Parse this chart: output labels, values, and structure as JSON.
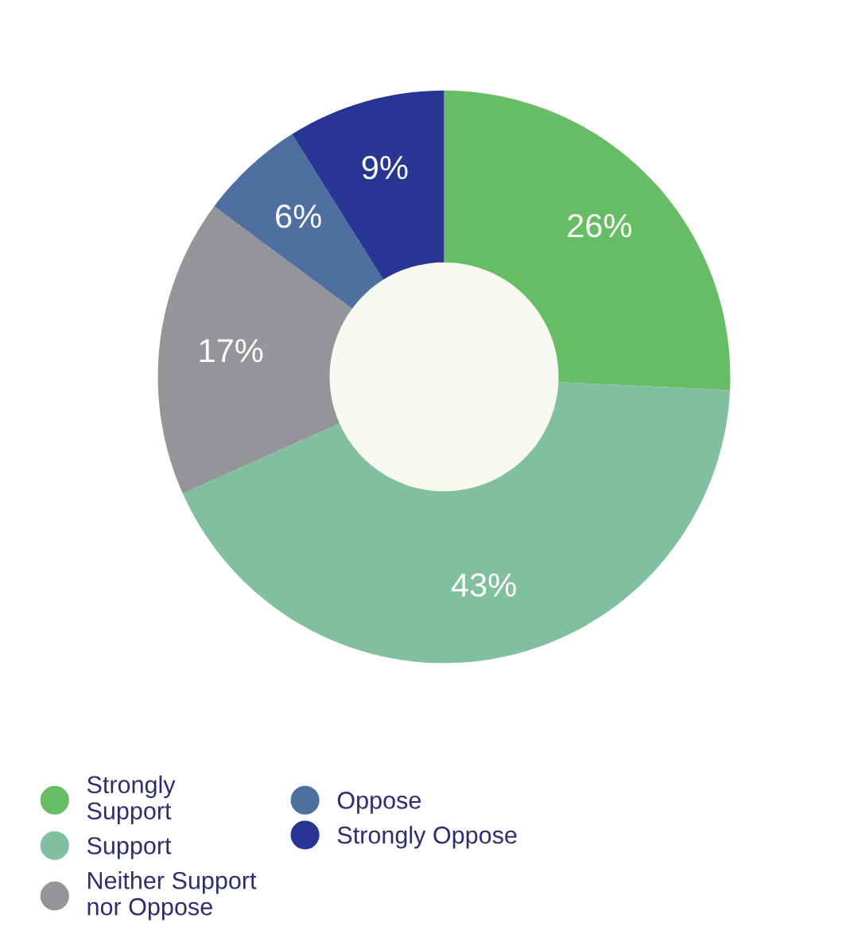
{
  "chart_data": {
    "type": "donut",
    "categories": [
      "Strongly Support",
      "Support",
      "Neither Support nor Oppose",
      "Oppose",
      "Strongly Oppose"
    ],
    "values": [
      26,
      43,
      17,
      6,
      9
    ],
    "colors": [
      "#66bd63",
      "#80bfa0",
      "#939598",
      "#4f6fa0",
      "#283593"
    ],
    "value_labels": [
      "26%",
      "43%",
      "17%",
      "6%",
      "9%"
    ],
    "legend": "bottom left"
  }
}
